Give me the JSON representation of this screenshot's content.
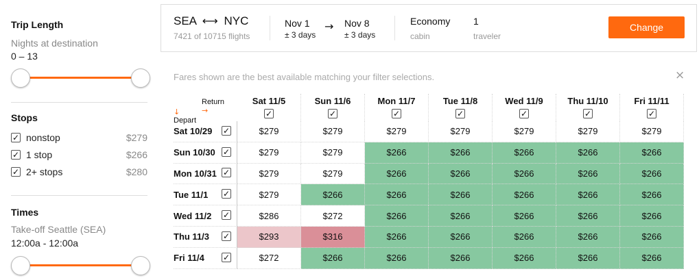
{
  "sidebar": {
    "trip_length": {
      "title": "Trip Length",
      "label": "Nights at destination",
      "value": "0 – 13"
    },
    "stops": {
      "title": "Stops",
      "items": [
        {
          "label": "nonstop",
          "price": "$279",
          "checked": true
        },
        {
          "label": "1 stop",
          "price": "$266",
          "checked": true
        },
        {
          "label": "2+ stops",
          "price": "$280",
          "checked": true
        }
      ]
    },
    "times": {
      "title": "Times",
      "label": "Take-off Seattle (SEA)",
      "value": "12:00a - 12:00a"
    }
  },
  "summary": {
    "origin": "SEA",
    "destination": "NYC",
    "route_arrow": "⟷",
    "flights_count": "7421 of 10715 flights",
    "depart_date": "Nov 1",
    "depart_flex": "± 3 days",
    "date_arrow": "→",
    "return_date": "Nov 8",
    "return_flex": "± 3 days",
    "cabin": "Economy",
    "cabin_label": "cabin",
    "travelers": "1",
    "travelers_label": "traveler",
    "change_label": "Change"
  },
  "note": "Fares shown are the best available matching your filter selections.",
  "close_icon": "×",
  "grid": {
    "return_label": "Return",
    "return_arrow": "→",
    "depart_label": "Depart",
    "depart_arrow": "↓",
    "check_glyph": "✓",
    "columns": [
      "Sat 11/5",
      "Sun 11/6",
      "Mon 11/7",
      "Tue 11/8",
      "Wed 11/9",
      "Thu 11/10",
      "Fri 11/11"
    ],
    "rows": [
      {
        "label": "Sat 10/29",
        "cells": [
          [
            "$279",
            "n"
          ],
          [
            "$279",
            "n"
          ],
          [
            "$279",
            "n"
          ],
          [
            "$279",
            "n"
          ],
          [
            "$279",
            "n"
          ],
          [
            "$279",
            "n"
          ],
          [
            "$279",
            "n"
          ]
        ]
      },
      {
        "label": "Sun 10/30",
        "cells": [
          [
            "$279",
            "n"
          ],
          [
            "$279",
            "n"
          ],
          [
            "$266",
            "g"
          ],
          [
            "$266",
            "g"
          ],
          [
            "$266",
            "g"
          ],
          [
            "$266",
            "g"
          ],
          [
            "$266",
            "g"
          ]
        ]
      },
      {
        "label": "Mon 10/31",
        "cells": [
          [
            "$279",
            "n"
          ],
          [
            "$279",
            "n"
          ],
          [
            "$266",
            "g"
          ],
          [
            "$266",
            "g"
          ],
          [
            "$266",
            "g"
          ],
          [
            "$266",
            "g"
          ],
          [
            "$266",
            "g"
          ]
        ]
      },
      {
        "label": "Tue 11/1",
        "cells": [
          [
            "$279",
            "n"
          ],
          [
            "$266",
            "g"
          ],
          [
            "$266",
            "g"
          ],
          [
            "$266",
            "g"
          ],
          [
            "$266",
            "g"
          ],
          [
            "$266",
            "g"
          ],
          [
            "$266",
            "g"
          ]
        ]
      },
      {
        "label": "Wed 11/2",
        "cells": [
          [
            "$286",
            "n"
          ],
          [
            "$272",
            "n"
          ],
          [
            "$266",
            "g"
          ],
          [
            "$266",
            "g"
          ],
          [
            "$266",
            "g"
          ],
          [
            "$266",
            "g"
          ],
          [
            "$266",
            "g"
          ]
        ]
      },
      {
        "label": "Thu 11/3",
        "cells": [
          [
            "$293",
            "p1"
          ],
          [
            "$316",
            "p2"
          ],
          [
            "$266",
            "g"
          ],
          [
            "$266",
            "g"
          ],
          [
            "$266",
            "g"
          ],
          [
            "$266",
            "g"
          ],
          [
            "$266",
            "g"
          ]
        ]
      },
      {
        "label": "Fri 11/4",
        "cells": [
          [
            "$272",
            "n"
          ],
          [
            "$266",
            "g"
          ],
          [
            "$266",
            "g"
          ],
          [
            "$266",
            "g"
          ],
          [
            "$266",
            "g"
          ],
          [
            "$266",
            "g"
          ],
          [
            "$266",
            "g"
          ]
        ]
      }
    ]
  },
  "colors": {
    "accent": "#ff690f",
    "cheapest": "#87c8a0",
    "pricier": "#ecc6ca",
    "priciest": "#da8f98"
  }
}
